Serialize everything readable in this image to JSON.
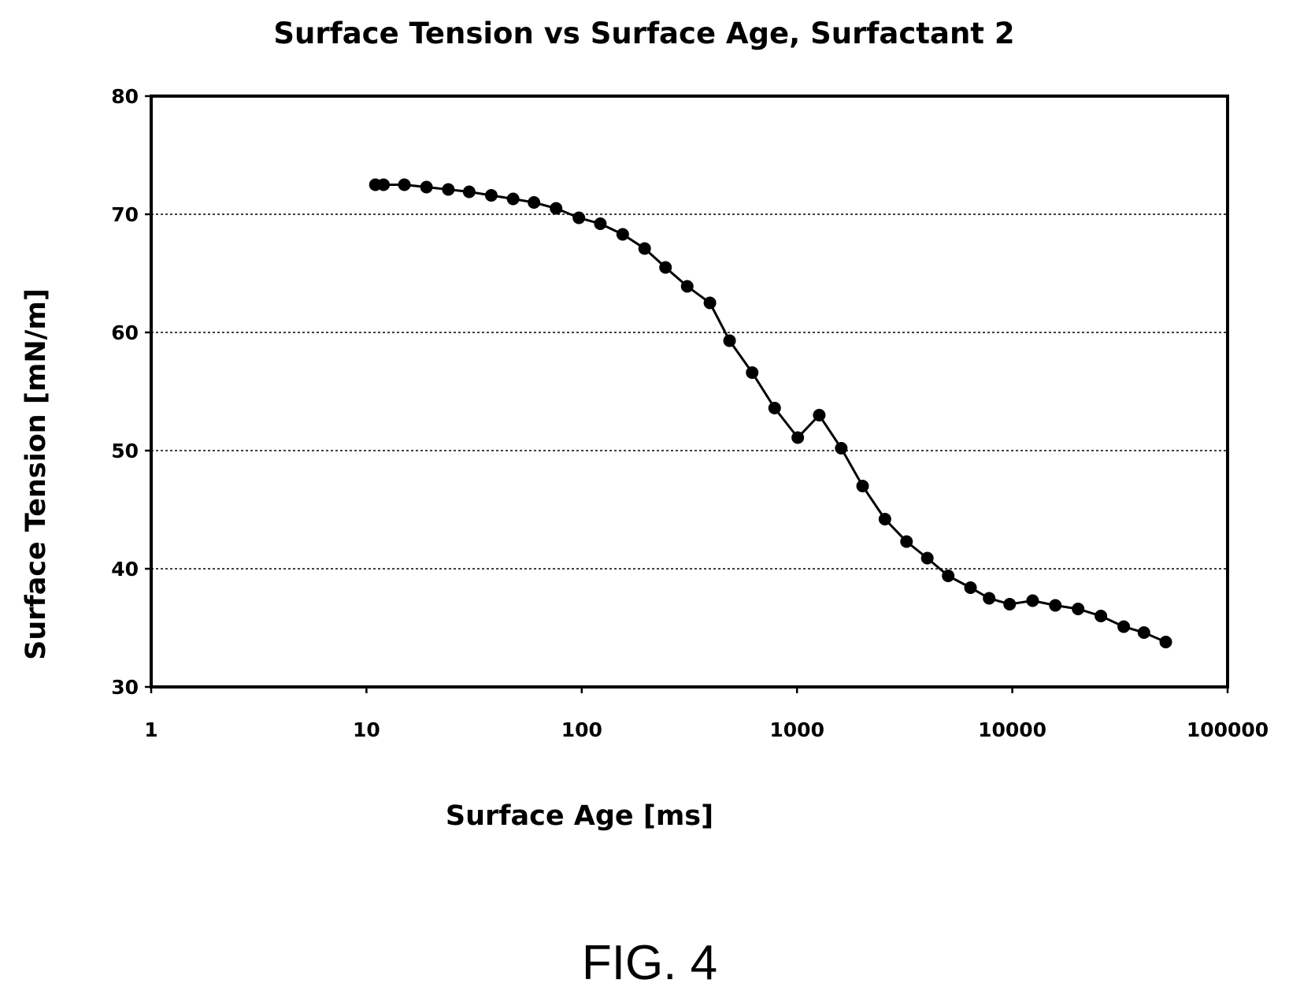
{
  "chart_data": {
    "type": "line",
    "title": "Surface Tension vs Surface Age, Surfactant 2",
    "xlabel": "Surface Age [ms]",
    "ylabel": "Surface Tension [mN/m]",
    "x_scale": "log",
    "xlim": [
      1,
      100000
    ],
    "ylim": [
      30,
      80
    ],
    "x_ticks": [
      1,
      10,
      100,
      1000,
      10000,
      100000
    ],
    "x_tick_labels": [
      "1",
      "10",
      "100",
      "1000",
      "10000",
      "100000"
    ],
    "y_ticks": [
      30,
      40,
      50,
      60,
      70,
      80
    ],
    "y_tick_labels": [
      "30",
      "40",
      "50",
      "60",
      "70",
      "80"
    ],
    "grid": "horizontal dotted lines",
    "legend": "none",
    "series": [
      {
        "marker": "filled circle",
        "color": "#000000",
        "points": [
          {
            "x": 11,
            "y": 72.5
          },
          {
            "x": 12,
            "y": 72.5
          },
          {
            "x": 15,
            "y": 72.5
          },
          {
            "x": 19,
            "y": 72.3
          },
          {
            "x": 24,
            "y": 72.1
          },
          {
            "x": 30,
            "y": 71.9
          },
          {
            "x": 38,
            "y": 71.6
          },
          {
            "x": 48,
            "y": 71.3
          },
          {
            "x": 60,
            "y": 71.0
          },
          {
            "x": 76,
            "y": 70.5
          },
          {
            "x": 97,
            "y": 69.7
          },
          {
            "x": 122,
            "y": 69.2
          },
          {
            "x": 155,
            "y": 68.3
          },
          {
            "x": 196,
            "y": 67.1
          },
          {
            "x": 245,
            "y": 65.5
          },
          {
            "x": 309,
            "y": 63.9
          },
          {
            "x": 394,
            "y": 62.5
          },
          {
            "x": 486,
            "y": 59.3
          },
          {
            "x": 619,
            "y": 56.6
          },
          {
            "x": 787,
            "y": 53.6
          },
          {
            "x": 1008,
            "y": 51.1
          },
          {
            "x": 1268,
            "y": 53.0
          },
          {
            "x": 1605,
            "y": 50.2
          },
          {
            "x": 2017,
            "y": 47.0
          },
          {
            "x": 2561,
            "y": 44.2
          },
          {
            "x": 3226,
            "y": 42.3
          },
          {
            "x": 4029,
            "y": 40.9
          },
          {
            "x": 5037,
            "y": 39.4
          },
          {
            "x": 6396,
            "y": 38.4
          },
          {
            "x": 7806,
            "y": 37.5
          },
          {
            "x": 9721,
            "y": 37.0
          },
          {
            "x": 12429,
            "y": 37.3
          },
          {
            "x": 15843,
            "y": 36.9
          },
          {
            "x": 20217,
            "y": 36.6
          },
          {
            "x": 25796,
            "y": 36.0
          },
          {
            "x": 32931,
            "y": 35.1
          },
          {
            "x": 40883,
            "y": 34.6
          },
          {
            "x": 51637,
            "y": 33.8
          }
        ]
      }
    ]
  },
  "figure_caption": "FIG. 4"
}
